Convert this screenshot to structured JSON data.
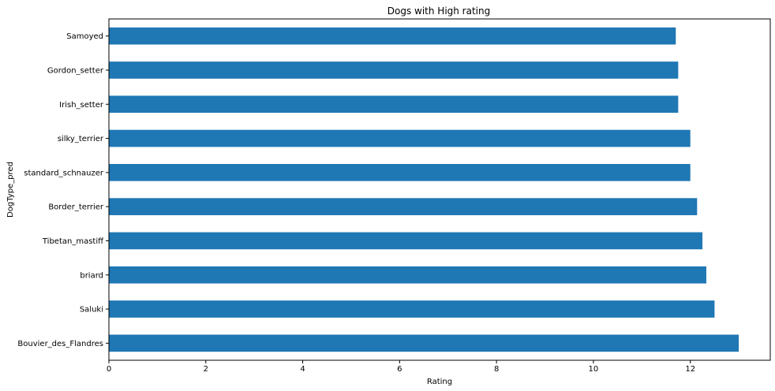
{
  "chart_data": {
    "type": "bar",
    "orientation": "horizontal",
    "title": "Dogs with High rating",
    "xlabel": "Rating",
    "ylabel": "DogType_pred",
    "categories": [
      "Samoyed",
      "Gordon_setter",
      "Irish_setter",
      "silky_terrier",
      "standard_schnauzer",
      "Border_terrier",
      "Tibetan_mastiff",
      "briard",
      "Saluki",
      "Bouvier_des_Flandres"
    ],
    "values": [
      11.7,
      11.75,
      11.75,
      12.0,
      12.0,
      12.14,
      12.25,
      12.33,
      12.5,
      13.0
    ],
    "xlim": [
      0,
      13.65
    ],
    "xticks": [
      0,
      2,
      4,
      6,
      8,
      10,
      12
    ],
    "grid": false,
    "legend": "none",
    "bar_color": "#1f77b4"
  }
}
